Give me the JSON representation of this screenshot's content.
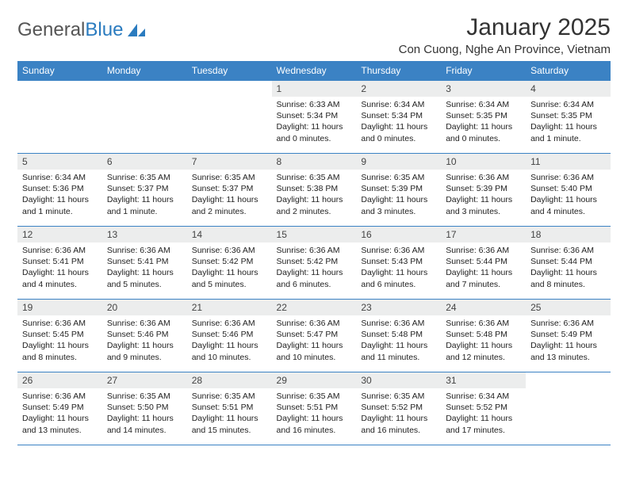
{
  "brand": {
    "part1": "General",
    "part2": "Blue"
  },
  "title": "January 2025",
  "location": "Con Cuong, Nghe An Province, Vietnam",
  "colors": {
    "header_bg": "#3b82c4",
    "header_text": "#ffffff",
    "daynum_bg": "#eceded",
    "border": "#3b82c4",
    "body_text": "#222222",
    "logo_gray": "#555555",
    "logo_blue": "#2a7bbf",
    "page_bg": "#ffffff"
  },
  "day_headers": [
    "Sunday",
    "Monday",
    "Tuesday",
    "Wednesday",
    "Thursday",
    "Friday",
    "Saturday"
  ],
  "weeks": [
    [
      null,
      null,
      null,
      {
        "n": "1",
        "sr": "6:33 AM",
        "ss": "5:34 PM",
        "dl": "11 hours and 0 minutes."
      },
      {
        "n": "2",
        "sr": "6:34 AM",
        "ss": "5:34 PM",
        "dl": "11 hours and 0 minutes."
      },
      {
        "n": "3",
        "sr": "6:34 AM",
        "ss": "5:35 PM",
        "dl": "11 hours and 0 minutes."
      },
      {
        "n": "4",
        "sr": "6:34 AM",
        "ss": "5:35 PM",
        "dl": "11 hours and 1 minute."
      }
    ],
    [
      {
        "n": "5",
        "sr": "6:34 AM",
        "ss": "5:36 PM",
        "dl": "11 hours and 1 minute."
      },
      {
        "n": "6",
        "sr": "6:35 AM",
        "ss": "5:37 PM",
        "dl": "11 hours and 1 minute."
      },
      {
        "n": "7",
        "sr": "6:35 AM",
        "ss": "5:37 PM",
        "dl": "11 hours and 2 minutes."
      },
      {
        "n": "8",
        "sr": "6:35 AM",
        "ss": "5:38 PM",
        "dl": "11 hours and 2 minutes."
      },
      {
        "n": "9",
        "sr": "6:35 AM",
        "ss": "5:39 PM",
        "dl": "11 hours and 3 minutes."
      },
      {
        "n": "10",
        "sr": "6:36 AM",
        "ss": "5:39 PM",
        "dl": "11 hours and 3 minutes."
      },
      {
        "n": "11",
        "sr": "6:36 AM",
        "ss": "5:40 PM",
        "dl": "11 hours and 4 minutes."
      }
    ],
    [
      {
        "n": "12",
        "sr": "6:36 AM",
        "ss": "5:41 PM",
        "dl": "11 hours and 4 minutes."
      },
      {
        "n": "13",
        "sr": "6:36 AM",
        "ss": "5:41 PM",
        "dl": "11 hours and 5 minutes."
      },
      {
        "n": "14",
        "sr": "6:36 AM",
        "ss": "5:42 PM",
        "dl": "11 hours and 5 minutes."
      },
      {
        "n": "15",
        "sr": "6:36 AM",
        "ss": "5:42 PM",
        "dl": "11 hours and 6 minutes."
      },
      {
        "n": "16",
        "sr": "6:36 AM",
        "ss": "5:43 PM",
        "dl": "11 hours and 6 minutes."
      },
      {
        "n": "17",
        "sr": "6:36 AM",
        "ss": "5:44 PM",
        "dl": "11 hours and 7 minutes."
      },
      {
        "n": "18",
        "sr": "6:36 AM",
        "ss": "5:44 PM",
        "dl": "11 hours and 8 minutes."
      }
    ],
    [
      {
        "n": "19",
        "sr": "6:36 AM",
        "ss": "5:45 PM",
        "dl": "11 hours and 8 minutes."
      },
      {
        "n": "20",
        "sr": "6:36 AM",
        "ss": "5:46 PM",
        "dl": "11 hours and 9 minutes."
      },
      {
        "n": "21",
        "sr": "6:36 AM",
        "ss": "5:46 PM",
        "dl": "11 hours and 10 minutes."
      },
      {
        "n": "22",
        "sr": "6:36 AM",
        "ss": "5:47 PM",
        "dl": "11 hours and 10 minutes."
      },
      {
        "n": "23",
        "sr": "6:36 AM",
        "ss": "5:48 PM",
        "dl": "11 hours and 11 minutes."
      },
      {
        "n": "24",
        "sr": "6:36 AM",
        "ss": "5:48 PM",
        "dl": "11 hours and 12 minutes."
      },
      {
        "n": "25",
        "sr": "6:36 AM",
        "ss": "5:49 PM",
        "dl": "11 hours and 13 minutes."
      }
    ],
    [
      {
        "n": "26",
        "sr": "6:36 AM",
        "ss": "5:49 PM",
        "dl": "11 hours and 13 minutes."
      },
      {
        "n": "27",
        "sr": "6:35 AM",
        "ss": "5:50 PM",
        "dl": "11 hours and 14 minutes."
      },
      {
        "n": "28",
        "sr": "6:35 AM",
        "ss": "5:51 PM",
        "dl": "11 hours and 15 minutes."
      },
      {
        "n": "29",
        "sr": "6:35 AM",
        "ss": "5:51 PM",
        "dl": "11 hours and 16 minutes."
      },
      {
        "n": "30",
        "sr": "6:35 AM",
        "ss": "5:52 PM",
        "dl": "11 hours and 16 minutes."
      },
      {
        "n": "31",
        "sr": "6:34 AM",
        "ss": "5:52 PM",
        "dl": "11 hours and 17 minutes."
      },
      null
    ]
  ],
  "labels": {
    "sunrise": "Sunrise:",
    "sunset": "Sunset:",
    "daylight": "Daylight:"
  }
}
